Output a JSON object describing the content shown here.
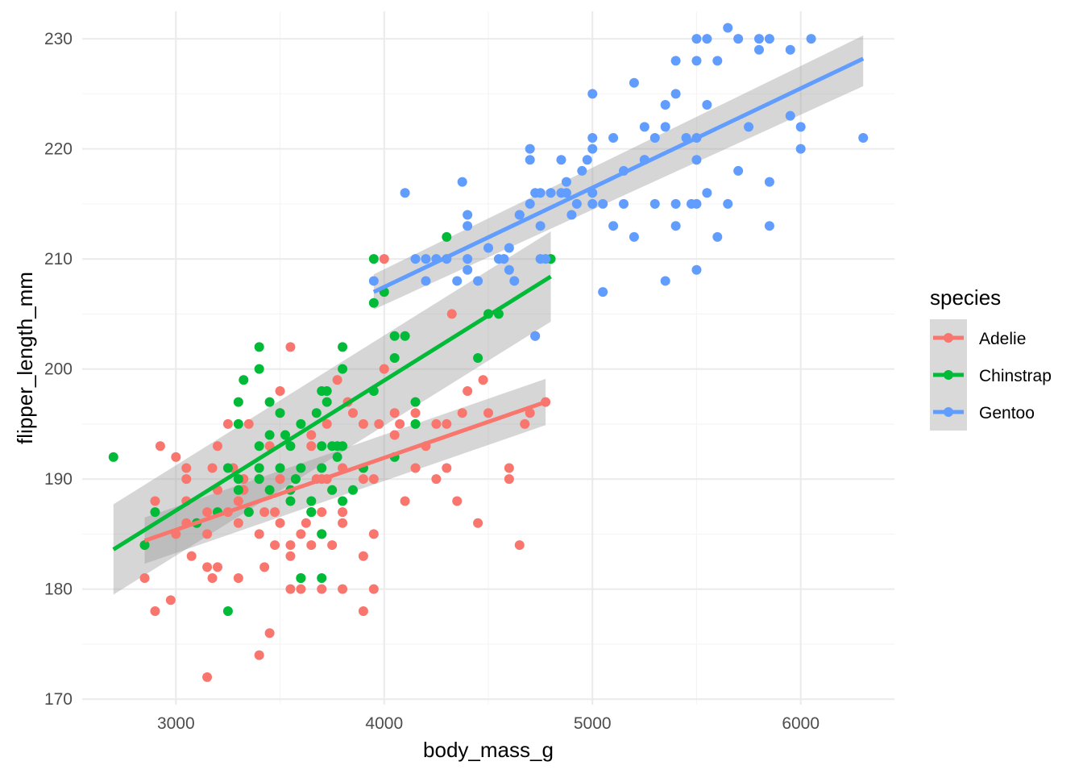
{
  "chart_data": {
    "type": "scatter",
    "xlabel": "body_mass_g",
    "ylabel": "flipper_length_mm",
    "xlim": [
      2550,
      6450
    ],
    "ylim": [
      169.5,
      232.5
    ],
    "x_ticks": [
      3000,
      4000,
      5000,
      6000
    ],
    "y_ticks": [
      170,
      180,
      190,
      200,
      210,
      220,
      230
    ],
    "x_tick_labels": [
      "3000",
      "4000",
      "5000",
      "6000"
    ],
    "y_tick_labels": [
      "170",
      "180",
      "190",
      "200",
      "210",
      "220",
      "230"
    ],
    "grid": true,
    "legend": {
      "title": "species",
      "position": "right"
    },
    "series": [
      {
        "name": "Adelie",
        "color": "#F8766D",
        "points": [
          [
            2850,
            184
          ],
          [
            2850,
            181
          ],
          [
            2900,
            188
          ],
          [
            2900,
            178
          ],
          [
            2925,
            193
          ],
          [
            2975,
            179
          ],
          [
            3000,
            192
          ],
          [
            3000,
            185
          ],
          [
            3050,
            191
          ],
          [
            3050,
            190
          ],
          [
            3050,
            188
          ],
          [
            3050,
            186
          ],
          [
            3075,
            183
          ],
          [
            3150,
            187
          ],
          [
            3150,
            185
          ],
          [
            3150,
            182
          ],
          [
            3150,
            172
          ],
          [
            3175,
            191
          ],
          [
            3175,
            181
          ],
          [
            3200,
            189
          ],
          [
            3200,
            182
          ],
          [
            3200,
            193
          ],
          [
            3250,
            187
          ],
          [
            3250,
            195
          ],
          [
            3275,
            191
          ],
          [
            3300,
            181
          ],
          [
            3300,
            186
          ],
          [
            3300,
            188
          ],
          [
            3325,
            190
          ],
          [
            3325,
            189
          ],
          [
            3350,
            195
          ],
          [
            3350,
            187
          ],
          [
            3400,
            185
          ],
          [
            3400,
            174
          ],
          [
            3400,
            190
          ],
          [
            3425,
            187
          ],
          [
            3425,
            182
          ],
          [
            3450,
            176
          ],
          [
            3450,
            193
          ],
          [
            3475,
            184
          ],
          [
            3475,
            187
          ],
          [
            3500,
            190
          ],
          [
            3500,
            186
          ],
          [
            3500,
            198
          ],
          [
            3500,
            196
          ],
          [
            3550,
            183
          ],
          [
            3550,
            202
          ],
          [
            3550,
            184
          ],
          [
            3550,
            180
          ],
          [
            3575,
            190
          ],
          [
            3600,
            185
          ],
          [
            3600,
            180
          ],
          [
            3625,
            186
          ],
          [
            3650,
            184
          ],
          [
            3650,
            194
          ],
          [
            3650,
            193
          ],
          [
            3675,
            190
          ],
          [
            3700,
            190
          ],
          [
            3700,
            187
          ],
          [
            3700,
            185
          ],
          [
            3700,
            180
          ],
          [
            3725,
            190
          ],
          [
            3725,
            195
          ],
          [
            3750,
            189
          ],
          [
            3750,
            184
          ],
          [
            3775,
            199
          ],
          [
            3800,
            191
          ],
          [
            3800,
            187
          ],
          [
            3800,
            186
          ],
          [
            3800,
            180
          ],
          [
            3825,
            197
          ],
          [
            3850,
            196
          ],
          [
            3900,
            195
          ],
          [
            3900,
            190
          ],
          [
            3900,
            191
          ],
          [
            3900,
            183
          ],
          [
            3900,
            178
          ],
          [
            3950,
            185
          ],
          [
            3950,
            180
          ],
          [
            3950,
            190
          ],
          [
            3975,
            195
          ],
          [
            4000,
            200
          ],
          [
            4000,
            210
          ],
          [
            4050,
            196
          ],
          [
            4050,
            194
          ],
          [
            4075,
            195
          ],
          [
            4100,
            188
          ],
          [
            4150,
            191
          ],
          [
            4150,
            196
          ],
          [
            4200,
            193
          ],
          [
            4250,
            190
          ],
          [
            4250,
            195
          ],
          [
            4300,
            195
          ],
          [
            4300,
            191
          ],
          [
            4325,
            205
          ],
          [
            4350,
            188
          ],
          [
            4375,
            196
          ],
          [
            4400,
            198
          ],
          [
            4450,
            186
          ],
          [
            4475,
            199
          ],
          [
            4500,
            196
          ],
          [
            4600,
            190
          ],
          [
            4600,
            191
          ],
          [
            4650,
            184
          ],
          [
            4675,
            195
          ],
          [
            4700,
            196
          ],
          [
            4725,
            203
          ],
          [
            4775,
            197
          ]
        ]
      },
      {
        "name": "Chinstrap",
        "color": "#00BA38",
        "points": [
          [
            2700,
            192
          ],
          [
            2900,
            187
          ],
          [
            3250,
            191
          ],
          [
            3250,
            178
          ],
          [
            3300,
            197
          ],
          [
            3300,
            195
          ],
          [
            3325,
            199
          ],
          [
            3350,
            187
          ],
          [
            3400,
            202
          ],
          [
            3400,
            200
          ],
          [
            3400,
            193
          ],
          [
            3400,
            190
          ],
          [
            3450,
            197
          ],
          [
            3500,
            196
          ],
          [
            3525,
            194
          ],
          [
            3550,
            193
          ],
          [
            3575,
            190
          ],
          [
            3600,
            181
          ],
          [
            3650,
            187
          ],
          [
            3700,
            198
          ],
          [
            3700,
            191
          ],
          [
            3700,
            185
          ],
          [
            3775,
            192
          ],
          [
            3800,
            202
          ],
          [
            3800,
            193
          ],
          [
            3800,
            200
          ],
          [
            3950,
            206
          ],
          [
            3950,
            210
          ],
          [
            4000,
            207
          ],
          [
            4050,
            203
          ],
          [
            4100,
            203
          ],
          [
            4150,
            197
          ],
          [
            4300,
            212
          ],
          [
            4450,
            201
          ],
          [
            4500,
            205
          ],
          [
            4550,
            205
          ],
          [
            4800,
            210
          ],
          [
            3600,
            195
          ],
          [
            3675,
            196
          ],
          [
            3725,
            198
          ],
          [
            3725,
            197
          ],
          [
            3775,
            193
          ],
          [
            3650,
            188
          ],
          [
            3550,
            188
          ],
          [
            3850,
            189
          ],
          [
            3450,
            189
          ],
          [
            3750,
            189
          ],
          [
            3600,
            181
          ],
          [
            3650,
            187
          ],
          [
            3700,
            181
          ],
          [
            3400,
            191
          ],
          [
            3500,
            191
          ],
          [
            3300,
            190
          ],
          [
            3550,
            189
          ],
          [
            3700,
            193
          ],
          [
            3800,
            188
          ],
          [
            3900,
            191
          ],
          [
            4050,
            201
          ],
          [
            4150,
            195
          ],
          [
            3950,
            198
          ],
          [
            4050,
            192
          ],
          [
            3600,
            191
          ],
          [
            3200,
            187
          ],
          [
            2850,
            184
          ],
          [
            3300,
            189
          ],
          [
            3100,
            186
          ],
          [
            3450,
            194
          ],
          [
            3750,
            193
          ]
        ]
      },
      {
        "name": "Gentoo",
        "color": "#619CFF",
        "points": [
          [
            3950,
            208
          ],
          [
            4100,
            216
          ],
          [
            4200,
            208
          ],
          [
            4150,
            210
          ],
          [
            4200,
            210
          ],
          [
            4250,
            210
          ],
          [
            4300,
            210
          ],
          [
            4350,
            208
          ],
          [
            4375,
            217
          ],
          [
            4400,
            213
          ],
          [
            4400,
            214
          ],
          [
            4400,
            209
          ],
          [
            4450,
            208
          ],
          [
            4500,
            211
          ],
          [
            4550,
            210
          ],
          [
            4575,
            210
          ],
          [
            4600,
            209
          ],
          [
            4625,
            208
          ],
          [
            4650,
            214
          ],
          [
            4700,
            220
          ],
          [
            4700,
            215
          ],
          [
            4700,
            219
          ],
          [
            4725,
            216
          ],
          [
            4750,
            216
          ],
          [
            4775,
            210
          ],
          [
            4800,
            216
          ],
          [
            4850,
            219
          ],
          [
            4875,
            217
          ],
          [
            4900,
            214
          ],
          [
            4950,
            218
          ],
          [
            5000,
            225
          ],
          [
            5000,
            221
          ],
          [
            5000,
            220
          ],
          [
            5000,
            216
          ],
          [
            5000,
            215
          ],
          [
            5050,
            215
          ],
          [
            5100,
            221
          ],
          [
            5100,
            213
          ],
          [
            5150,
            218
          ],
          [
            5200,
            226
          ],
          [
            5200,
            212
          ],
          [
            5250,
            222
          ],
          [
            5250,
            219
          ],
          [
            5300,
            221
          ],
          [
            5350,
            208
          ],
          [
            5350,
            222
          ],
          [
            5400,
            228
          ],
          [
            5400,
            225
          ],
          [
            5400,
            215
          ],
          [
            5400,
            213
          ],
          [
            5450,
            221
          ],
          [
            5500,
            230
          ],
          [
            5500,
            228
          ],
          [
            5500,
            219
          ],
          [
            5500,
            215
          ],
          [
            5500,
            209
          ],
          [
            5550,
            230
          ],
          [
            5550,
            224
          ],
          [
            5550,
            216
          ],
          [
            5600,
            228
          ],
          [
            5650,
            231
          ],
          [
            5650,
            215
          ],
          [
            5700,
            230
          ],
          [
            5700,
            218
          ],
          [
            5750,
            222
          ],
          [
            5800,
            230
          ],
          [
            5800,
            229
          ],
          [
            5850,
            230
          ],
          [
            5850,
            217
          ],
          [
            5850,
            213
          ],
          [
            5950,
            229
          ],
          [
            5950,
            223
          ],
          [
            6000,
            222
          ],
          [
            6000,
            220
          ],
          [
            6050,
            230
          ],
          [
            6300,
            221
          ],
          [
            4600,
            211
          ],
          [
            4650,
            214
          ],
          [
            4750,
            213
          ],
          [
            4875,
            216
          ],
          [
            4925,
            215
          ],
          [
            5150,
            215
          ],
          [
            5250,
            219
          ],
          [
            5300,
            215
          ],
          [
            5475,
            215
          ],
          [
            5350,
            224
          ],
          [
            5500,
            221
          ],
          [
            5600,
            212
          ],
          [
            4975,
            219
          ],
          [
            4400,
            210
          ],
          [
            4725,
            203
          ],
          [
            4850,
            216
          ],
          [
            4750,
            210
          ],
          [
            5050,
            207
          ]
        ]
      }
    ],
    "trendlines": [
      {
        "series": "Adelie",
        "x": [
          2850,
          4775
        ],
        "y": [
          184.4,
          197.0
        ],
        "ci_lower": [
          182.3,
          194.9
        ],
        "ci_upper": [
          186.5,
          199.1
        ]
      },
      {
        "series": "Chinstrap",
        "x": [
          2700,
          4800
        ],
        "y": [
          183.6,
          208.4
        ],
        "ci_lower": [
          179.5,
          204.3
        ],
        "ci_upper": [
          187.7,
          212.5
        ]
      },
      {
        "series": "Gentoo",
        "x": [
          3950,
          6300
        ],
        "y": [
          207.0,
          228.2
        ],
        "ci_lower": [
          205.4,
          225.7
        ],
        "ci_upper": [
          208.6,
          230.3
        ]
      }
    ]
  }
}
